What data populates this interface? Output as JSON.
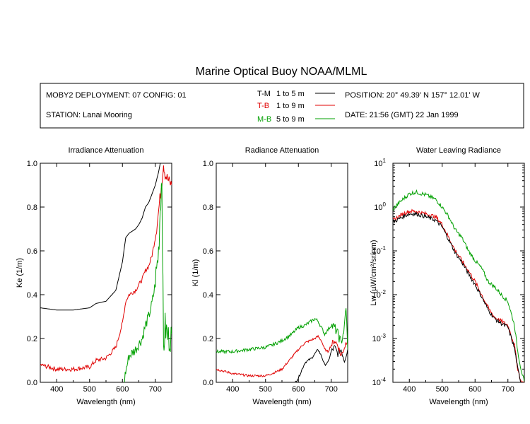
{
  "title": "Marine Optical Buoy NOAA/MLML",
  "info": {
    "deployment": "MOBY2 DEPLOYMENT: 07 CONFIG: 01",
    "station": "STATION: Lanai Mooring",
    "position": "POSITION: 20° 49.39' N   157° 12.01' W",
    "date": "DATE: 21:56 (GMT) 22 Jan 1999"
  },
  "legend": [
    {
      "code": "T-M",
      "range": "1 to 5  m",
      "color": "#000000"
    },
    {
      "code": "T-B",
      "range": "1 to 9  m",
      "color": "#e00000"
    },
    {
      "code": "M-B",
      "range": "5 to 9  m",
      "color": "#00a000"
    }
  ],
  "chart_data": [
    {
      "type": "line",
      "title": "Irradiance Attenuation",
      "xlabel": "Wavelength (nm)",
      "ylabel": "Ke  (1/m)",
      "xlim": [
        350,
        750
      ],
      "ylim": [
        0,
        1.0
      ],
      "xticks": [
        "400",
        "500",
        "600",
        "700"
      ],
      "yticks": [
        "0.0",
        "0.2",
        "0.4",
        "0.6",
        "0.8",
        "1.0"
      ],
      "series": [
        {
          "name": "T-M",
          "color": "#000000",
          "noise": 0,
          "x": [
            350,
            400,
            450,
            500,
            520,
            550,
            580,
            600,
            610,
            620,
            640,
            650,
            660,
            670,
            680,
            690,
            700,
            710,
            715
          ],
          "y": [
            0.34,
            0.33,
            0.33,
            0.34,
            0.36,
            0.37,
            0.42,
            0.55,
            0.66,
            0.68,
            0.7,
            0.72,
            0.75,
            0.8,
            0.82,
            0.86,
            0.9,
            0.96,
            1.0
          ]
        },
        {
          "name": "T-B",
          "color": "#e00000",
          "noise": 0.02,
          "x": [
            350,
            400,
            450,
            500,
            520,
            550,
            580,
            600,
            610,
            620,
            640,
            660,
            670,
            680,
            690,
            700,
            710,
            720,
            725,
            730,
            740,
            750
          ],
          "y": [
            0.08,
            0.06,
            0.06,
            0.07,
            0.1,
            0.11,
            0.16,
            0.27,
            0.37,
            0.4,
            0.42,
            0.47,
            0.51,
            0.53,
            0.58,
            0.66,
            0.78,
            0.92,
            1.0,
            0.95,
            0.92,
            0.9
          ]
        },
        {
          "name": "M-B",
          "color": "#00a000",
          "noise": 0.05,
          "x": [
            605,
            610,
            620,
            640,
            660,
            670,
            680,
            690,
            700,
            710,
            715,
            720,
            725,
            730,
            740,
            750
          ],
          "y": [
            0.0,
            0.05,
            0.12,
            0.15,
            0.2,
            0.26,
            0.3,
            0.36,
            0.45,
            0.6,
            0.8,
            0.95,
            0.15,
            0.25,
            0.2,
            0.22
          ]
        }
      ]
    },
    {
      "type": "line",
      "title": "Radiance Attenuation",
      "xlabel": "Wavelength (nm)",
      "ylabel": "Kl  (1/m)",
      "xlim": [
        350,
        750
      ],
      "ylim": [
        0,
        1.0
      ],
      "xticks": [
        "400",
        "500",
        "600",
        "700"
      ],
      "yticks": [
        "0.0",
        "0.2",
        "0.4",
        "0.6",
        "0.8",
        "1.0"
      ],
      "series": [
        {
          "name": "T-M",
          "color": "#000000",
          "noise": 0.01,
          "x": [
            590,
            600,
            620,
            640,
            650,
            660,
            670,
            680,
            690,
            700,
            710,
            720,
            730,
            740,
            750
          ],
          "y": [
            0.0,
            0.02,
            0.09,
            0.11,
            0.13,
            0.15,
            0.12,
            0.08,
            0.09,
            0.14,
            0.16,
            0.13,
            0.15,
            0.1,
            0.15
          ]
        },
        {
          "name": "T-B",
          "color": "#e00000",
          "noise": 0.01,
          "x": [
            350,
            400,
            450,
            500,
            520,
            550,
            600,
            620,
            650,
            660,
            670,
            680,
            690,
            700,
            710,
            720,
            730,
            740,
            750
          ],
          "y": [
            0.06,
            0.04,
            0.03,
            0.03,
            0.04,
            0.06,
            0.15,
            0.18,
            0.2,
            0.21,
            0.19,
            0.15,
            0.14,
            0.17,
            0.19,
            0.17,
            0.12,
            0.16,
            0.2
          ]
        },
        {
          "name": "M-B",
          "color": "#00a000",
          "noise": 0.015,
          "x": [
            350,
            400,
            450,
            500,
            520,
            550,
            580,
            600,
            620,
            640,
            650,
            660,
            670,
            680,
            690,
            700,
            710,
            720,
            730,
            740,
            745,
            750
          ],
          "y": [
            0.14,
            0.14,
            0.15,
            0.16,
            0.17,
            0.19,
            0.22,
            0.25,
            0.26,
            0.28,
            0.29,
            0.28,
            0.25,
            0.22,
            0.24,
            0.26,
            0.25,
            0.22,
            0.18,
            0.25,
            0.35,
            0.15
          ]
        }
      ]
    },
    {
      "type": "line",
      "title": "Water Leaving Radiance",
      "xlabel": "Wavelength (nm)",
      "ylabel": "Lw  (µW/cm²/sr/nm)",
      "xlim": [
        350,
        750
      ],
      "yscale": "log",
      "ylim": [
        0.0001,
        10
      ],
      "xticks": [
        "400",
        "500",
        "600",
        "700"
      ],
      "yticks": [
        "10^1",
        "10^0",
        "10^-1",
        "10^-2",
        "10^-3",
        "10^-4"
      ],
      "series": [
        {
          "name": "M-B",
          "color": "#00a000",
          "noise": 0.06,
          "x": [
            350,
            380,
            400,
            420,
            450,
            480,
            500,
            520,
            540,
            560,
            580,
            600,
            620,
            640,
            660,
            680,
            700,
            720,
            730,
            740,
            750
          ],
          "y": [
            0.9,
            1.5,
            2.0,
            2.2,
            1.9,
            1.5,
            1.0,
            0.6,
            0.3,
            0.2,
            0.1,
            0.06,
            0.04,
            0.02,
            0.015,
            0.01,
            0.007,
            0.002,
            0.0005,
            0.0002,
            0.0001
          ]
        },
        {
          "name": "T-B",
          "color": "#e00000",
          "noise": 0.06,
          "x": [
            350,
            380,
            400,
            420,
            450,
            480,
            500,
            520,
            540,
            560,
            580,
            600,
            620,
            640,
            660,
            680,
            700,
            720,
            730,
            740,
            750
          ],
          "y": [
            0.5,
            0.7,
            0.8,
            0.8,
            0.7,
            0.6,
            0.4,
            0.2,
            0.1,
            0.06,
            0.035,
            0.02,
            0.01,
            0.005,
            0.003,
            0.0025,
            0.002,
            0.0007,
            0.0002,
            0.0001,
            0.0001
          ]
        },
        {
          "name": "T-M",
          "color": "#000000",
          "noise": 0.06,
          "x": [
            350,
            380,
            400,
            420,
            450,
            480,
            500,
            520,
            540,
            560,
            580,
            600,
            620,
            640,
            660,
            680,
            700,
            720,
            730,
            740,
            750
          ],
          "y": [
            0.45,
            0.6,
            0.7,
            0.7,
            0.6,
            0.5,
            0.35,
            0.18,
            0.09,
            0.055,
            0.03,
            0.017,
            0.009,
            0.0045,
            0.0028,
            0.0022,
            0.0018,
            0.0006,
            0.0002,
            0.0001,
            0.0001
          ]
        }
      ]
    }
  ]
}
